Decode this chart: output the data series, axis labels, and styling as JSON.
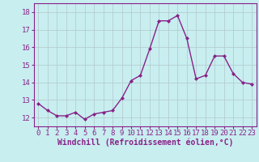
{
  "x": [
    0,
    1,
    2,
    3,
    4,
    5,
    6,
    7,
    8,
    9,
    10,
    11,
    12,
    13,
    14,
    15,
    16,
    17,
    18,
    19,
    20,
    21,
    22,
    23
  ],
  "y": [
    12.8,
    12.4,
    12.1,
    12.1,
    12.3,
    11.9,
    12.2,
    12.3,
    12.4,
    13.1,
    14.1,
    14.4,
    15.9,
    17.5,
    17.5,
    17.8,
    16.5,
    14.2,
    14.4,
    15.5,
    15.5,
    14.5,
    14.0,
    13.9
  ],
  "line_color": "#882288",
  "marker": "D",
  "marker_size": 2.0,
  "linewidth": 1.0,
  "bg_color": "#c8eef0",
  "grid_color": "#b0c8cc",
  "xlabel": "Windchill (Refroidissement éolien,°C)",
  "xlabel_fontsize": 7,
  "ylim": [
    11.5,
    18.5
  ],
  "xlim": [
    -0.5,
    23.5
  ],
  "yticks": [
    12,
    13,
    14,
    15,
    16,
    17,
    18
  ],
  "xticks": [
    0,
    1,
    2,
    3,
    4,
    5,
    6,
    7,
    8,
    9,
    10,
    11,
    12,
    13,
    14,
    15,
    16,
    17,
    18,
    19,
    20,
    21,
    22,
    23
  ],
  "tick_fontsize": 6.5,
  "axis_color": "#882288",
  "spine_color": "#882288"
}
